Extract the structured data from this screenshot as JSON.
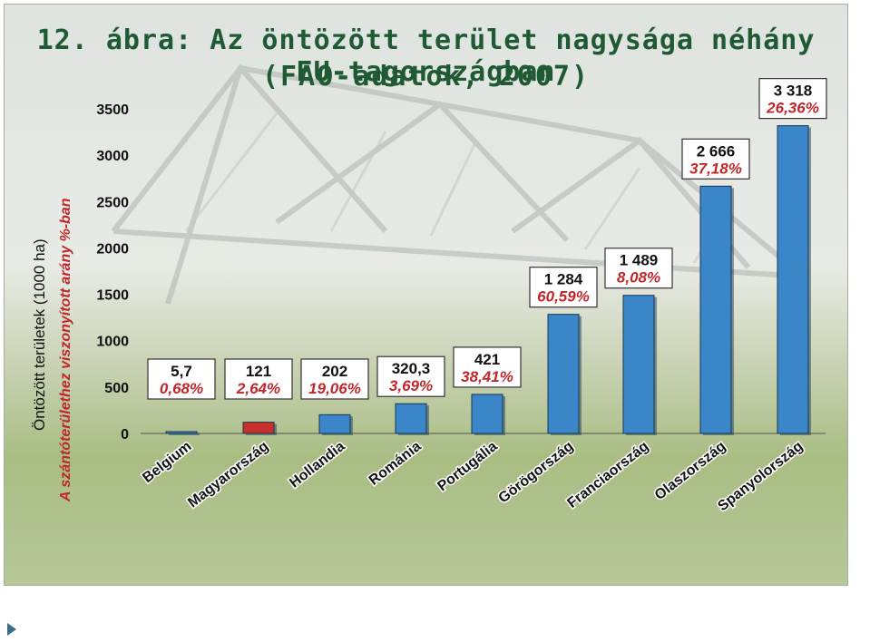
{
  "figure": {
    "title_line1": "12. ábra: Az öntözött terület nagysága néhány EU-tagországban",
    "title_line2": "(FAO-adatok, 2007)"
  },
  "chart_data": {
    "type": "bar",
    "title": "12. ábra: Az öntözött terület nagysága néhány EU-tagországban (FAO-adatok, 2007)",
    "ylabel": "Öntözött területek (1000 ha)",
    "ylabel2": "A szántóterülethez viszonyított arány %-ban",
    "ylim": [
      0,
      3500
    ],
    "yticks": [
      0,
      500,
      1000,
      1500,
      2000,
      2500,
      3000,
      3500
    ],
    "ytick_labels": [
      "0",
      "500",
      "1000",
      "1500",
      "2000",
      "2500",
      "3000",
      "3500"
    ],
    "grid": false,
    "categories": [
      "Belgium",
      "Magyarország",
      "Hollandia",
      "Románia",
      "Portugália",
      "Görögország",
      "Franciaország",
      "Olaszország",
      "Spanyolország"
    ],
    "values": [
      5.7,
      121,
      202,
      320.3,
      421,
      1284,
      1489,
      2666,
      3318
    ],
    "value_labels": [
      "5,7",
      "121",
      "202",
      "320,3",
      "421",
      "1 284",
      "1 489",
      "2 666",
      "3 318"
    ],
    "percent_labels": [
      "0,68%",
      "2,64%",
      "19,06%",
      "3,69%",
      "38,41%",
      "60,59%",
      "8,08%",
      "37,18%",
      "26,36%"
    ],
    "colors": [
      "#3a86c8",
      "#c8302c",
      "#3a86c8",
      "#3a86c8",
      "#3a86c8",
      "#3a86c8",
      "#3a86c8",
      "#3a86c8",
      "#3a86c8"
    ]
  },
  "footer": {
    "icon": "triangle-right-icon",
    "color": "#3c6c8c"
  }
}
